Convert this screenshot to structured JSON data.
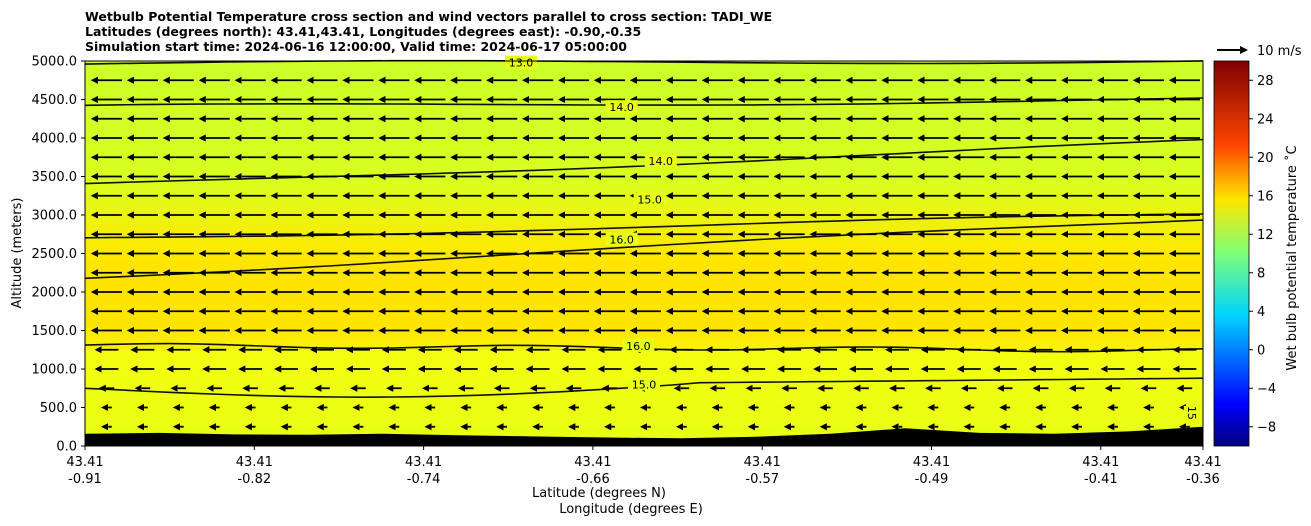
{
  "chart_data": {
    "type": "contourf",
    "title_lines": [
      "Wetbulb Potential Temperature cross section and wind vectors parallel to cross section: TADI_WE",
      "Latitudes (degrees north): 43.41,43.41, Longitudes (degrees east): -0.90,-0.35",
      "Simulation start time: 2024-06-16 12:00:00, Valid time: 2024-06-17 05:00:00"
    ],
    "ylabel": "Altitude (meters)",
    "xlabel_1": "Latitude (degrees N)",
    "xlabel_2": "Longitude (degrees E)",
    "ylim": [
      0,
      5000
    ],
    "y_ticks": [
      "0.0",
      "500.0",
      "1000.0",
      "1500.0",
      "2000.0",
      "2500.0",
      "3000.0",
      "3500.0",
      "4000.0",
      "4500.0",
      "5000.0"
    ],
    "x_ticks": [
      {
        "lat": "43.41",
        "lon": "-0.91"
      },
      {
        "lat": "43.41",
        "lon": "-0.82"
      },
      {
        "lat": "43.41",
        "lon": "-0.74"
      },
      {
        "lat": "43.41",
        "lon": "-0.66"
      },
      {
        "lat": "43.41",
        "lon": "-0.57"
      },
      {
        "lat": "43.41",
        "lon": "-0.49"
      },
      {
        "lat": "43.41",
        "lon": "-0.41"
      },
      {
        "lat": "43.41",
        "lon": "-0.36"
      }
    ],
    "colorbar": {
      "label": "Wet bulb potential temperature $^\\circ$C",
      "label_text": "Wet bulb potential temperature ˚C",
      "range": [
        -10,
        30
      ],
      "ticks": [
        "−8",
        "−4",
        "0",
        "4",
        "8",
        "12",
        "16",
        "20",
        "24",
        "28"
      ]
    },
    "wind_key": {
      "label": "10 m/s"
    },
    "terrain_height_m": [
      160,
      170,
      150,
      145,
      160,
      140,
      125,
      110,
      100,
      120,
      160,
      230,
      170,
      160,
      190,
      250
    ],
    "contour_labels": [
      {
        "text": "13.0",
        "x_frac": 0.39,
        "alt": 4980
      },
      {
        "text": "14.0",
        "x_frac": 0.48,
        "alt": 4400
      },
      {
        "text": "14.0",
        "x_frac": 0.515,
        "alt": 3700
      },
      {
        "text": "15.0",
        "x_frac": 0.505,
        "alt": 3200
      },
      {
        "text": "16.0",
        "x_frac": 0.48,
        "alt": 2680
      },
      {
        "text": "16.0",
        "x_frac": 0.495,
        "alt": 1300
      },
      {
        "text": "15.0",
        "x_frac": 0.5,
        "alt": 800
      },
      {
        "text": "15",
        "x_frac": 0.99,
        "alt": 430
      }
    ],
    "contours": [
      {
        "level": 13.0,
        "alt_left": 4960,
        "alt_right": 5010
      },
      {
        "level": 14.0,
        "alt_left": 4400,
        "alt_right": 4500
      },
      {
        "level": 14.0,
        "alt_left": 3380,
        "alt_right": 3950
      },
      {
        "level": 15.0,
        "alt_left": 2700,
        "alt_right": 3000
      },
      {
        "level": 15.0,
        "alt_left": 2200,
        "alt_right": 2950
      },
      {
        "level": 16.0,
        "alt_left": 1310,
        "alt_right": 1240
      },
      {
        "level": 15.0,
        "alt_left": 750,
        "alt_right": 880
      }
    ]
  }
}
